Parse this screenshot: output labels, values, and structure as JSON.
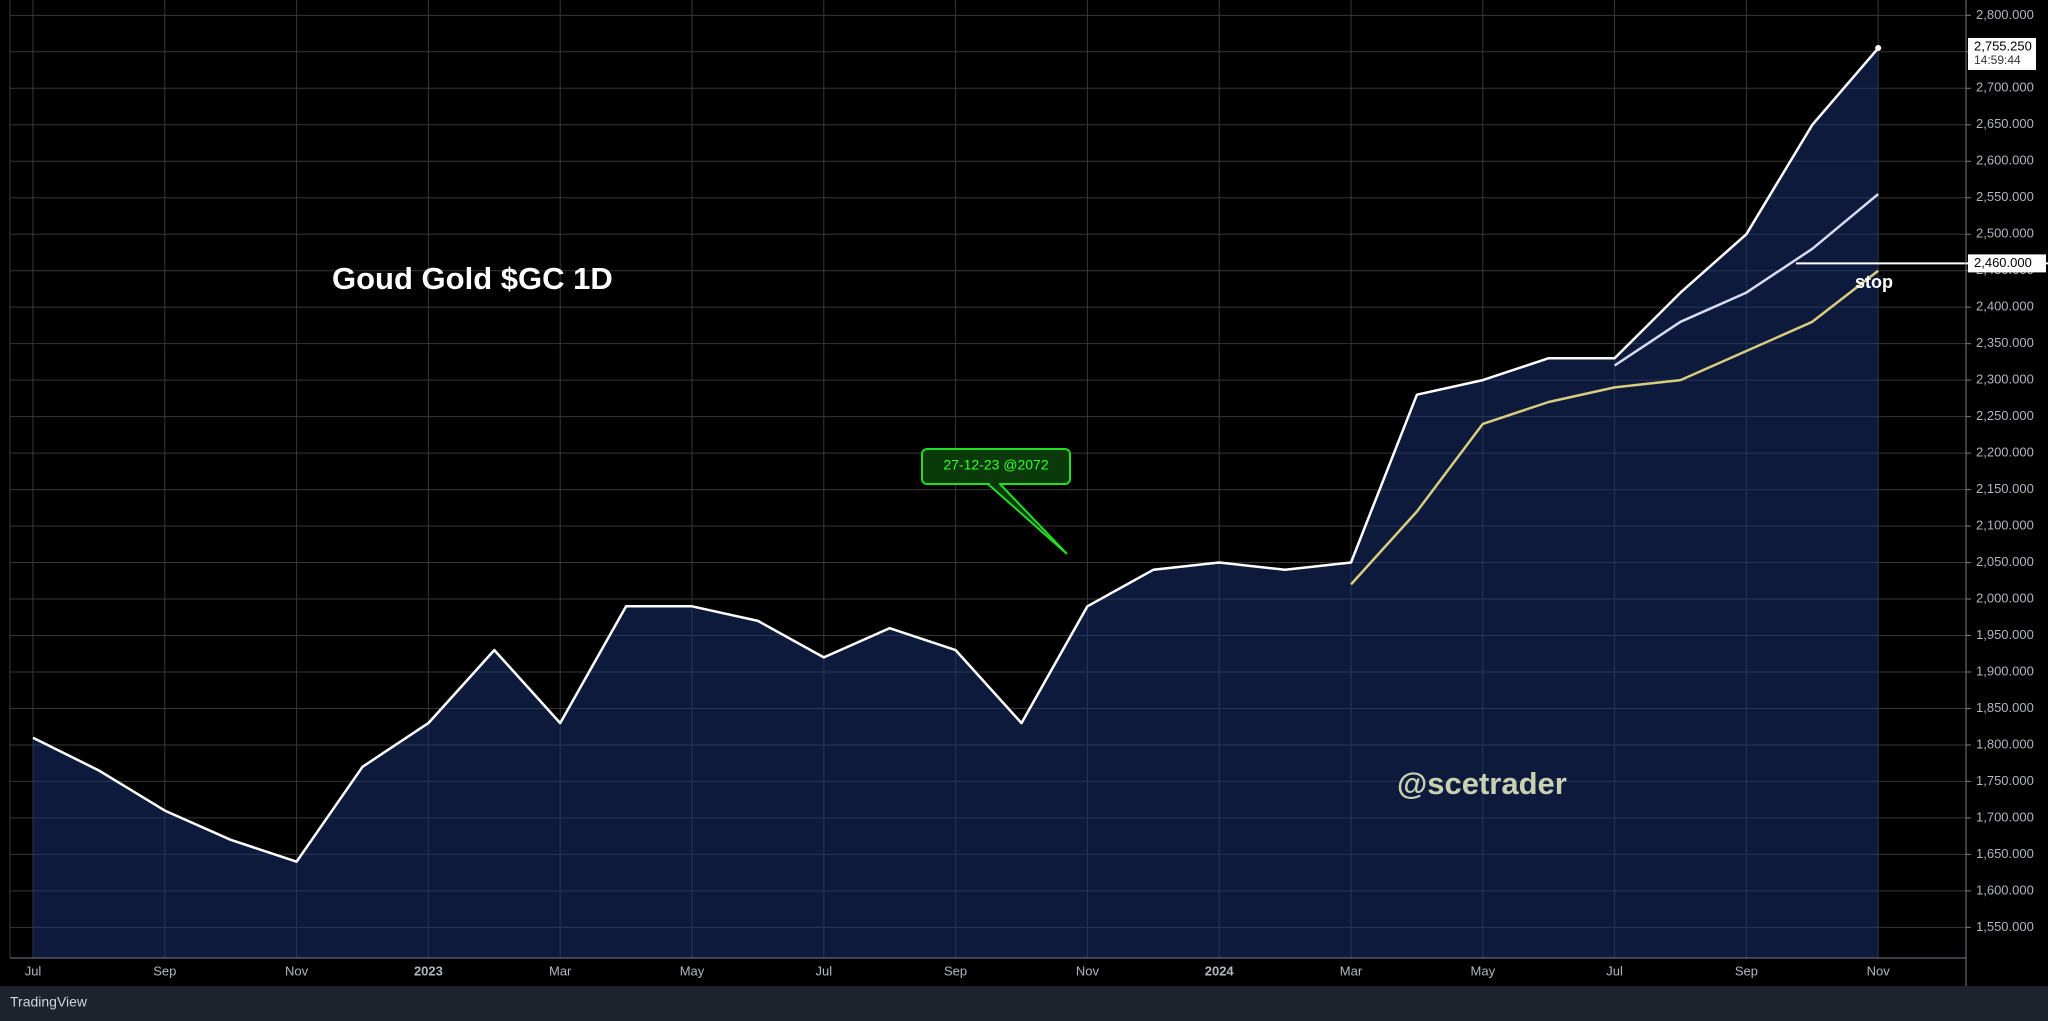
{
  "chart_data": {
    "type": "line",
    "title": "Goud Gold $GC 1D",
    "watermark": "@scetrader",
    "brand": "TradingView",
    "annotation": {
      "text": "27-12-23 @2072"
    },
    "stop": {
      "value": 2460,
      "label": "2,460.000",
      "text": "stop"
    },
    "last_price": {
      "value": 2755.25,
      "label": "2,755.250"
    },
    "countdown": "14:59:44",
    "x": [
      "2022-07",
      "2022-08",
      "2022-09",
      "2022-10",
      "2022-11",
      "2022-12",
      "2023-01",
      "2023-02",
      "2023-03",
      "2023-04",
      "2023-05",
      "2023-06",
      "2023-07",
      "2023-08",
      "2023-09",
      "2023-10",
      "2023-11",
      "2023-12",
      "2024-01",
      "2024-02",
      "2024-03",
      "2024-04",
      "2024-05",
      "2024-06",
      "2024-07",
      "2024-08",
      "2024-09",
      "2024-10",
      "2024-11"
    ],
    "series": [
      {
        "color": "#ffffff",
        "area": true,
        "values": [
          1810,
          1765,
          1710,
          1670,
          1640,
          1770,
          1830,
          1930,
          1830,
          1990,
          1990,
          1970,
          1920,
          1960,
          1930,
          1830,
          1990,
          2040,
          2050,
          2040,
          2050,
          2280,
          2300,
          2330,
          2330,
          2420,
          2500,
          2650,
          2755
        ]
      },
      {
        "color": "#d8dcf2",
        "values": [
          null,
          null,
          null,
          null,
          null,
          null,
          null,
          null,
          null,
          null,
          null,
          null,
          null,
          null,
          null,
          null,
          null,
          null,
          null,
          null,
          null,
          null,
          null,
          null,
          2320,
          2380,
          2420,
          2480,
          2555
        ]
      },
      {
        "color": "#d6ce7e",
        "values": [
          null,
          null,
          null,
          null,
          null,
          null,
          null,
          null,
          null,
          null,
          null,
          null,
          null,
          null,
          null,
          null,
          null,
          null,
          null,
          null,
          2020,
          2120,
          2240,
          2270,
          2290,
          2300,
          2340,
          2380,
          2450
        ]
      }
    ],
    "xticks": [
      {
        "value": "2022-07",
        "label": "Jul"
      },
      {
        "value": "2022-09",
        "label": "Sep"
      },
      {
        "value": "2022-11",
        "label": "Nov"
      },
      {
        "value": "2023-01",
        "label": "2023"
      },
      {
        "value": "2023-03",
        "label": "Mar"
      },
      {
        "value": "2023-05",
        "label": "May"
      },
      {
        "value": "2023-07",
        "label": "Jul"
      },
      {
        "value": "2023-09",
        "label": "Sep"
      },
      {
        "value": "2023-11",
        "label": "Nov"
      },
      {
        "value": "2024-01",
        "label": "2024"
      },
      {
        "value": "2024-03",
        "label": "Mar"
      },
      {
        "value": "2024-05",
        "label": "May"
      },
      {
        "value": "2024-07",
        "label": "Jul"
      },
      {
        "value": "2024-09",
        "label": "Sep"
      },
      {
        "value": "2024-11",
        "label": "Nov"
      }
    ],
    "ylim": [
      1508,
      2821
    ],
    "yticks": [
      {
        "value": 1550,
        "label": "1,550.000"
      },
      {
        "value": 1600,
        "label": "1,600.000"
      },
      {
        "value": 1650,
        "label": "1,650.000"
      },
      {
        "value": 1700,
        "label": "1,700.000"
      },
      {
        "value": 1750,
        "label": "1,750.000"
      },
      {
        "value": 1800,
        "label": "1,800.000"
      },
      {
        "value": 1850,
        "label": "1,850.000"
      },
      {
        "value": 1900,
        "label": "1,900.000"
      },
      {
        "value": 1950,
        "label": "1,950.000"
      },
      {
        "value": 2000,
        "label": "2,000.000"
      },
      {
        "value": 2050,
        "label": "2,050.000"
      },
      {
        "value": 2100,
        "label": "2,100.000"
      },
      {
        "value": 2150,
        "label": "2,150.000"
      },
      {
        "value": 2200,
        "label": "2,200.000"
      },
      {
        "value": 2250,
        "label": "2,250.000"
      },
      {
        "value": 2300,
        "label": "2,300.000"
      },
      {
        "value": 2350,
        "label": "2,350.000"
      },
      {
        "value": 2400,
        "label": "2,400.000"
      },
      {
        "value": 2450,
        "label": "2,450.000"
      },
      {
        "value": 2500,
        "label": "2,500.000"
      },
      {
        "value": 2550,
        "label": "2,550.000"
      },
      {
        "value": 2600,
        "label": "2,600.000"
      },
      {
        "value": 2650,
        "label": "2,650.000"
      },
      {
        "value": 2700,
        "label": "2,700.000"
      },
      {
        "value": 2750,
        "label": "2,750.000"
      },
      {
        "value": 2800,
        "label": "2,800.000"
      }
    ],
    "grid": true
  }
}
